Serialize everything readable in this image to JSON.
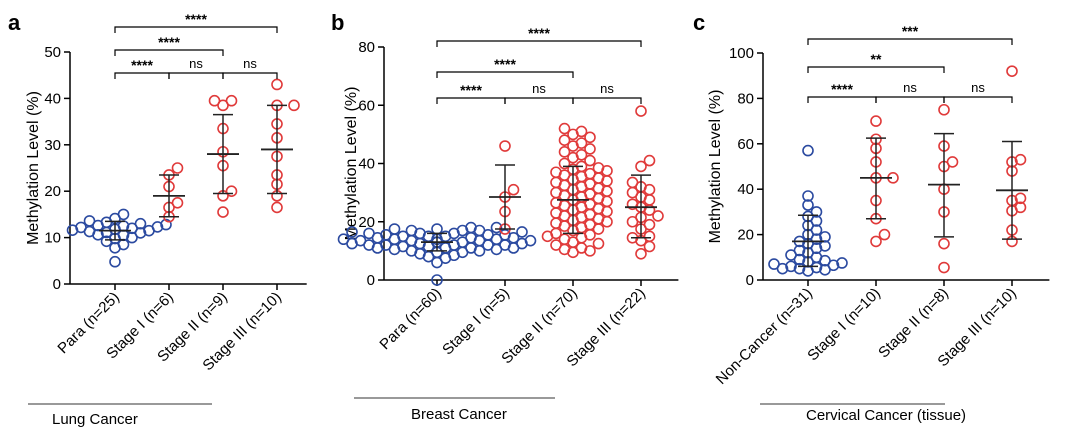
{
  "chart_data": [
    {
      "type": "scatter",
      "panel": "a",
      "title": "",
      "xlabel": "",
      "ylabel": "Methylation Level (%)",
      "ylim": [
        0,
        50
      ],
      "yticks": [
        0,
        10,
        20,
        30,
        40,
        50
      ],
      "caption": "Lung Cancer",
      "groups": [
        {
          "name": "Para (n=25)",
          "color": "#2b4aa0",
          "mean": 11.5,
          "sd_low": 9.5,
          "sd_high": 13.5,
          "values": [
            4.8,
            7.8,
            8.5,
            9.2,
            9.8,
            10.0,
            10.5,
            10.6,
            11.0,
            11.1,
            11.3,
            11.5,
            11.6,
            11.8,
            12.0,
            12.2,
            12.3,
            12.5,
            12.6,
            12.8,
            13.0,
            13.3,
            13.6,
            14.1,
            15.0
          ]
        },
        {
          "name": "Stage I (n=6)",
          "color": "#e03a3a",
          "mean": 19.0,
          "sd_low": 14.5,
          "sd_high": 23.5,
          "values": [
            14.5,
            16.5,
            17.5,
            21.0,
            23.5,
            25.0
          ]
        },
        {
          "name": "Stage II (n=9)",
          "color": "#e03a3a",
          "mean": 28.0,
          "sd_low": 19.5,
          "sd_high": 36.5,
          "values": [
            15.5,
            19.0,
            20.0,
            25.5,
            28.5,
            33.5,
            38.5,
            39.5,
            39.5
          ]
        },
        {
          "name": "Stage III (n=10)",
          "color": "#e03a3a",
          "mean": 29.0,
          "sd_low": 19.5,
          "sd_high": 38.5,
          "values": [
            16.5,
            19.0,
            21.5,
            23.5,
            27.5,
            31.5,
            34.5,
            38.5,
            38.5,
            43.0
          ]
        }
      ],
      "comparisons": [
        {
          "from": 0,
          "to": 1,
          "label": "****",
          "level": 1
        },
        {
          "from": 1,
          "to": 2,
          "label": "ns",
          "level": 1
        },
        {
          "from": 2,
          "to": 3,
          "label": "ns",
          "level": 1
        },
        {
          "from": 0,
          "to": 2,
          "label": "****",
          "level": 2
        },
        {
          "from": 0,
          "to": 3,
          "label": "****",
          "level": 3
        }
      ]
    },
    {
      "type": "scatter",
      "panel": "b",
      "title": "",
      "xlabel": "",
      "ylabel": "Methylation Level (%)",
      "ylim": [
        0,
        80
      ],
      "yticks": [
        0,
        20,
        40,
        60,
        80
      ],
      "caption": "Breast Cancer",
      "groups": [
        {
          "name": "Para (n=60)",
          "color": "#2b4aa0",
          "mean": 13.0,
          "sd_low": 10.0,
          "sd_high": 16.0,
          "values": [
            0.0,
            6.0,
            7.5,
            8.0,
            8.5,
            9.0,
            9.5,
            9.5,
            10.0,
            10.0,
            10.5,
            10.5,
            11.0,
            11.0,
            11.0,
            11.5,
            11.5,
            12.0,
            12.0,
            12.0,
            12.0,
            12.5,
            12.5,
            12.5,
            13.0,
            13.0,
            13.0,
            13.0,
            13.0,
            13.5,
            13.5,
            13.5,
            13.5,
            14.0,
            14.0,
            14.0,
            14.0,
            14.5,
            14.5,
            14.5,
            15.0,
            15.0,
            15.0,
            15.5,
            15.5,
            15.5,
            16.0,
            16.0,
            16.0,
            16.5,
            16.5,
            17.0,
            17.0,
            17.0,
            17.5,
            17.5,
            18.0,
            18.0,
            11.0,
            12.0
          ]
        },
        {
          "name": "Stage I (n=5)",
          "color": "#e03a3a",
          "mean": 28.5,
          "sd_low": 17.5,
          "sd_high": 39.5,
          "values": [
            17.5,
            23.5,
            28.5,
            31.0,
            46.0
          ]
        },
        {
          "name": "Stage II (n=70)",
          "color": "#e03a3a",
          "mean": 27.5,
          "sd_low": 16.0,
          "sd_high": 39.0,
          "values": [
            9.5,
            10.0,
            10.5,
            11.0,
            12.0,
            12.5,
            13.0,
            14.0,
            14.5,
            15.0,
            15.5,
            16.0,
            17.0,
            17.5,
            18.0,
            18.5,
            19.0,
            19.5,
            20.0,
            20.5,
            21.0,
            21.5,
            22.0,
            22.5,
            23.0,
            23.5,
            24.0,
            24.5,
            25.0,
            25.5,
            26.0,
            26.5,
            27.0,
            27.5,
            28.0,
            28.5,
            29.0,
            29.5,
            30.0,
            30.5,
            31.0,
            31.5,
            32.0,
            32.5,
            33.0,
            33.5,
            34.0,
            34.5,
            35.0,
            35.5,
            36.0,
            36.5,
            37.0,
            37.5,
            38.0,
            38.5,
            39.0,
            40.0,
            41.0,
            42.0,
            43.0,
            44.0,
            45.0,
            46.0,
            47.0,
            48.0,
            49.0,
            50.0,
            51.0,
            52.0
          ]
        },
        {
          "name": "Stage III (n=22)",
          "color": "#e03a3a",
          "mean": 25.0,
          "sd_low": 14.5,
          "sd_high": 36.0,
          "values": [
            9.0,
            11.5,
            13.5,
            14.5,
            15.0,
            17.5,
            19.0,
            20.0,
            21.5,
            22.0,
            24.0,
            25.0,
            26.0,
            27.5,
            28.5,
            30.0,
            31.0,
            32.0,
            33.5,
            39.0,
            41.0,
            58.0
          ]
        }
      ],
      "comparisons": [
        {
          "from": 0,
          "to": 1,
          "label": "****",
          "level": 1
        },
        {
          "from": 1,
          "to": 2,
          "label": "ns",
          "level": 1
        },
        {
          "from": 2,
          "to": 3,
          "label": "ns",
          "level": 1
        },
        {
          "from": 0,
          "to": 2,
          "label": "****",
          "level": 2
        },
        {
          "from": 0,
          "to": 3,
          "label": "****",
          "level": 3
        }
      ]
    },
    {
      "type": "scatter",
      "panel": "c",
      "title": "",
      "xlabel": "",
      "ylabel": "Methylation Level (%)",
      "ylim": [
        0,
        100
      ],
      "yticks": [
        0,
        20,
        40,
        60,
        80,
        100
      ],
      "caption": "Cervical Cancer (tissue)",
      "groups": [
        {
          "name": "Non-Cancer (n=31)",
          "color": "#2b4aa0",
          "mean": 17.0,
          "sd_low": 6.0,
          "sd_high": 28.5,
          "values": [
            4.0,
            4.5,
            5.0,
            5.0,
            5.5,
            6.0,
            6.5,
            7.0,
            7.5,
            8.0,
            8.5,
            9.0,
            10.0,
            11.0,
            12.0,
            13.0,
            14.0,
            15.0,
            16.0,
            17.0,
            18.0,
            19.0,
            20.0,
            22.0,
            24.0,
            26.0,
            28.0,
            30.0,
            33.0,
            37.0,
            57.0
          ]
        },
        {
          "name": "Stage I (n=10)",
          "color": "#e03a3a",
          "mean": 45.0,
          "sd_low": 27.0,
          "sd_high": 62.5,
          "values": [
            17.0,
            20.0,
            27.0,
            35.0,
            45.0,
            45.0,
            52.0,
            58.0,
            62.0,
            70.0
          ]
        },
        {
          "name": "Stage II (n=8)",
          "color": "#e03a3a",
          "mean": 42.0,
          "sd_low": 19.0,
          "sd_high": 64.5,
          "values": [
            5.5,
            16.0,
            30.0,
            40.0,
            50.0,
            52.0,
            59.0,
            75.0
          ]
        },
        {
          "name": "Stage III (n=10)",
          "color": "#e03a3a",
          "mean": 39.5,
          "sd_low": 18.0,
          "sd_high": 61.0,
          "values": [
            17.0,
            22.0,
            30.5,
            32.0,
            35.0,
            36.0,
            48.0,
            52.0,
            53.0,
            92.0
          ]
        }
      ],
      "comparisons": [
        {
          "from": 0,
          "to": 1,
          "label": "****",
          "level": 1
        },
        {
          "from": 1,
          "to": 2,
          "label": "ns",
          "level": 1
        },
        {
          "from": 2,
          "to": 3,
          "label": "ns",
          "level": 1
        },
        {
          "from": 0,
          "to": 2,
          "label": "**",
          "level": 2
        },
        {
          "from": 0,
          "to": 3,
          "label": "***",
          "level": 3
        }
      ]
    }
  ]
}
